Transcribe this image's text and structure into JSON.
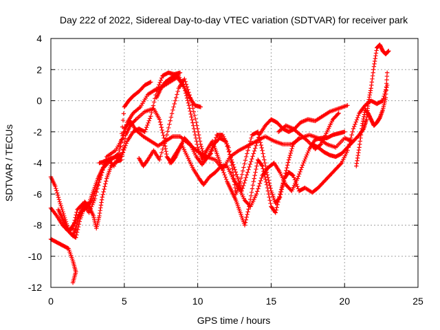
{
  "chart_data": {
    "type": "scatter",
    "title": "Day 222 of 2022, Sidereal Day-to-day VTEC variation (SDTVAR) for receiver park",
    "xlabel": "GPS time / hours",
    "ylabel": "SDTVAR / TECUs",
    "xlim": [
      0,
      25
    ],
    "ylim": [
      -12,
      4
    ],
    "xticks": [
      0,
      5,
      10,
      15,
      20,
      25
    ],
    "yticks": [
      -12,
      -10,
      -8,
      -6,
      -4,
      -2,
      0,
      2,
      4
    ],
    "grid": true,
    "marker": "plus",
    "color": "#ff0000",
    "series": [
      {
        "points": [
          [
            0.0,
            -4.9
          ],
          [
            0.3,
            -5.5
          ],
          [
            0.6,
            -6.5
          ],
          [
            0.9,
            -7.4
          ],
          [
            1.2,
            -8.3
          ],
          [
            1.5,
            -8.2
          ],
          [
            1.8,
            -7.0
          ],
          [
            2.2,
            -6.6
          ],
          [
            2.6,
            -7.2
          ],
          [
            3.0,
            -6.3
          ],
          [
            3.4,
            -4.8
          ],
          [
            3.8,
            -3.6
          ],
          [
            4.4,
            -3.2
          ],
          [
            4.9,
            -2.4
          ],
          [
            5.2,
            -1.4
          ],
          [
            5.6,
            -0.8
          ],
          [
            6.1,
            -0.4
          ],
          [
            6.6,
            0.4
          ],
          [
            7.1,
            0.7
          ],
          [
            7.6,
            0.9
          ],
          [
            8.1,
            1.2
          ],
          [
            8.6,
            1.5
          ],
          [
            9.0,
            1.0
          ],
          [
            9.4,
            0.3
          ],
          [
            9.8,
            -0.3
          ],
          [
            10.2,
            -0.4
          ]
        ]
      },
      {
        "points": [
          [
            0.0,
            -6.9
          ],
          [
            0.4,
            -7.4
          ],
          [
            0.8,
            -8.0
          ],
          [
            1.2,
            -8.4
          ],
          [
            1.6,
            -7.9
          ],
          [
            2.0,
            -7.2
          ],
          [
            2.4,
            -6.9
          ],
          [
            2.8,
            -6.4
          ],
          [
            3.2,
            -5.4
          ],
          [
            3.6,
            -4.3
          ],
          [
            4.1,
            -3.8
          ],
          [
            4.6,
            -3.4
          ],
          [
            5.0,
            -1.8
          ],
          [
            5.4,
            -1.3
          ],
          [
            5.8,
            -1.9
          ],
          [
            6.3,
            -2.3
          ],
          [
            6.8,
            -2.6
          ],
          [
            7.3,
            -2.9
          ],
          [
            7.8,
            -2.6
          ],
          [
            8.3,
            -2.3
          ],
          [
            8.8,
            -2.3
          ],
          [
            9.3,
            -2.7
          ],
          [
            9.8,
            -3.1
          ],
          [
            10.2,
            -3.4
          ],
          [
            10.6,
            -3.6
          ],
          [
            11.2,
            -3.8
          ],
          [
            11.7,
            -4.4
          ],
          [
            12.2,
            -3.6
          ],
          [
            12.8,
            -3.2
          ],
          [
            13.4,
            -2.9
          ],
          [
            14.0,
            -2.6
          ],
          [
            14.6,
            -2.3
          ],
          [
            15.2,
            -2.6
          ],
          [
            15.8,
            -2.8
          ],
          [
            16.4,
            -2.8
          ],
          [
            17.0,
            -2.4
          ],
          [
            17.6,
            -2.2
          ],
          [
            18.2,
            -2.4
          ],
          [
            18.8,
            -2.8
          ],
          [
            19.4,
            -3.0
          ],
          [
            20.0,
            -2.4
          ],
          [
            20.5,
            -2.6
          ]
        ]
      },
      {
        "points": [
          [
            0.0,
            -8.9
          ],
          [
            0.4,
            -9.1
          ],
          [
            0.8,
            -9.3
          ],
          [
            1.2,
            -9.5
          ],
          [
            1.5,
            -10.3
          ],
          [
            1.7,
            -11.0
          ],
          [
            1.5,
            -11.7
          ]
        ]
      },
      {
        "points": [
          [
            1.5,
            -8.7
          ],
          [
            1.7,
            -8.2
          ],
          [
            1.9,
            -7.5
          ],
          [
            2.1,
            -7.0
          ],
          [
            2.3,
            -6.5
          ],
          [
            2.6,
            -6.8
          ],
          [
            2.9,
            -7.4
          ],
          [
            3.1,
            -8.2
          ],
          [
            3.3,
            -7.4
          ],
          [
            3.5,
            -6.2
          ],
          [
            3.8,
            -5.0
          ],
          [
            4.1,
            -4.2
          ],
          [
            4.5,
            -3.9
          ],
          [
            4.8,
            -3.8
          ],
          [
            5.1,
            -2.2
          ],
          [
            5.4,
            -1.6
          ],
          [
            5.8,
            -1.2
          ],
          [
            6.4,
            -0.7
          ],
          [
            7.0,
            -0.5
          ],
          [
            7.4,
            -1.2
          ],
          [
            7.7,
            -2.4
          ],
          [
            7.9,
            -3.6
          ],
          [
            8.2,
            -4.0
          ],
          [
            8.5,
            -3.6
          ],
          [
            8.8,
            -3.0
          ],
          [
            9.1,
            -2.4
          ],
          [
            9.5,
            -2.8
          ],
          [
            9.9,
            -3.6
          ],
          [
            10.3,
            -4.1
          ],
          [
            10.7,
            -3.6
          ],
          [
            11.1,
            -2.8
          ],
          [
            11.5,
            -2.4
          ],
          [
            11.9,
            -2.6
          ],
          [
            12.3,
            -3.8
          ],
          [
            12.7,
            -4.9
          ],
          [
            13.0,
            -5.8
          ],
          [
            13.4,
            -4.6
          ],
          [
            13.8,
            -3.4
          ],
          [
            14.2,
            -2.2
          ],
          [
            14.6,
            -1.6
          ],
          [
            15.0,
            -1.2
          ],
          [
            15.4,
            -1.4
          ],
          [
            15.8,
            -1.8
          ],
          [
            16.2,
            -2.0
          ],
          [
            16.6,
            -1.8
          ],
          [
            17.0,
            -1.4
          ],
          [
            17.5,
            -1.2
          ],
          [
            18.0,
            -1.3
          ],
          [
            18.5,
            -1.0
          ],
          [
            19.0,
            -0.7
          ],
          [
            19.6,
            -0.5
          ],
          [
            20.2,
            -0.3
          ]
        ]
      },
      {
        "points": [
          [
            6.0,
            -3.7
          ],
          [
            6.3,
            -4.2
          ],
          [
            6.6,
            -3.8
          ],
          [
            7.0,
            -3.2
          ],
          [
            7.4,
            -3.8
          ],
          [
            7.9,
            -2.2
          ],
          [
            8.3,
            -0.6
          ],
          [
            8.7,
            0.8
          ],
          [
            9.1,
            1.4
          ],
          [
            9.5,
            0.2
          ],
          [
            9.9,
            -1.4
          ],
          [
            10.2,
            -2.8
          ],
          [
            10.5,
            -3.8
          ],
          [
            10.9,
            -3.4
          ],
          [
            11.3,
            -2.2
          ],
          [
            11.7,
            -2.2
          ],
          [
            12.1,
            -3.0
          ],
          [
            12.4,
            -4.6
          ],
          [
            12.6,
            -6.0
          ],
          [
            12.9,
            -5.2
          ],
          [
            13.3,
            -3.6
          ],
          [
            13.7,
            -2.2
          ],
          [
            14.1,
            -2.0
          ],
          [
            14.4,
            -3.2
          ],
          [
            14.7,
            -4.6
          ],
          [
            15.0,
            -5.8
          ],
          [
            15.3,
            -6.6
          ],
          [
            15.6,
            -6.2
          ],
          [
            15.9,
            -5.0
          ],
          [
            16.2,
            -3.8
          ],
          [
            16.5,
            -2.8
          ],
          [
            16.9,
            -2.4
          ]
        ]
      },
      {
        "points": [
          [
            8.1,
            -4.0
          ],
          [
            8.5,
            -3.4
          ],
          [
            8.9,
            -2.8
          ],
          [
            9.3,
            -3.6
          ],
          [
            9.7,
            -4.4
          ],
          [
            10.1,
            -5.0
          ],
          [
            10.4,
            -5.4
          ],
          [
            10.8,
            -4.9
          ],
          [
            11.2,
            -4.6
          ],
          [
            11.6,
            -4.2
          ],
          [
            12.0,
            -4.2
          ],
          [
            12.4,
            -5.0
          ],
          [
            12.8,
            -5.6
          ],
          [
            13.2,
            -6.4
          ],
          [
            13.6,
            -6.8
          ],
          [
            14.0,
            -6.0
          ],
          [
            14.4,
            -4.8
          ],
          [
            14.8,
            -4.3
          ],
          [
            15.2,
            -4.0
          ],
          [
            15.6,
            -4.6
          ],
          [
            16.0,
            -5.4
          ],
          [
            16.4,
            -5.8
          ],
          [
            16.8,
            -5.0
          ],
          [
            17.2,
            -4.0
          ],
          [
            17.6,
            -3.1
          ],
          [
            18.0,
            -2.5
          ],
          [
            18.4,
            -2.4
          ],
          [
            18.8,
            -2.4
          ],
          [
            19.2,
            -2.2
          ],
          [
            19.6,
            -2.1
          ],
          [
            20.0,
            -2.0
          ]
        ]
      },
      {
        "points": [
          [
            7.2,
            0.2
          ],
          [
            7.5,
            0.8
          ],
          [
            7.8,
            1.2
          ],
          [
            8.1,
            1.4
          ],
          [
            8.4,
            1.6
          ],
          [
            8.7,
            1.6
          ],
          [
            9.1,
            0.8
          ],
          [
            9.4,
            -0.3
          ],
          [
            9.7,
            -1.6
          ],
          [
            10.0,
            -3.0
          ],
          [
            10.3,
            -3.8
          ],
          [
            10.6,
            -3.2
          ],
          [
            11.0,
            -2.6
          ],
          [
            11.3,
            -3.4
          ],
          [
            11.6,
            -4.2
          ],
          [
            12.0,
            -5.2
          ],
          [
            12.3,
            -5.8
          ],
          [
            12.6,
            -6.4
          ],
          [
            12.9,
            -7.2
          ],
          [
            13.2,
            -8.0
          ],
          [
            13.5,
            -6.8
          ],
          [
            13.8,
            -5.2
          ],
          [
            14.1,
            -3.8
          ],
          [
            14.4,
            -4.2
          ],
          [
            14.7,
            -5.4
          ],
          [
            15.0,
            -6.8
          ],
          [
            15.3,
            -7.2
          ],
          [
            15.6,
            -6.0
          ],
          [
            15.9,
            -5.0
          ],
          [
            16.2,
            -4.6
          ],
          [
            16.5,
            -4.8
          ],
          [
            16.9,
            -5.8
          ],
          [
            17.3,
            -5.6
          ],
          [
            17.8,
            -5.9
          ],
          [
            18.2,
            -5.6
          ],
          [
            18.6,
            -5.2
          ],
          [
            19.0,
            -4.8
          ],
          [
            19.4,
            -4.4
          ],
          [
            19.8,
            -4.0
          ],
          [
            20.2,
            -3.2
          ],
          [
            20.6,
            -1.8
          ],
          [
            21.0,
            -0.8
          ],
          [
            21.4,
            -0.3
          ],
          [
            21.8,
            0.0
          ],
          [
            22.2,
            -0.2
          ],
          [
            22.6,
            0.0
          ],
          [
            22.9,
            1.0
          ]
        ]
      },
      {
        "points": [
          [
            17.8,
            -2.8
          ],
          [
            18.2,
            -3.0
          ],
          [
            18.6,
            -3.3
          ],
          [
            19.0,
            -3.5
          ],
          [
            19.4,
            -3.6
          ],
          [
            19.8,
            -3.4
          ],
          [
            20.2,
            -3.0
          ],
          [
            20.6,
            -2.6
          ],
          [
            21.0,
            -2.2
          ],
          [
            21.3,
            -1.8
          ],
          [
            21.5,
            -1.2
          ],
          [
            21.6,
            -0.2
          ],
          [
            21.8,
            0.8
          ],
          [
            22.0,
            2.2
          ],
          [
            22.2,
            3.4
          ],
          [
            22.4,
            3.6
          ],
          [
            22.6,
            3.2
          ],
          [
            22.8,
            3.0
          ],
          [
            23.0,
            3.2
          ]
        ]
      },
      {
        "points": [
          [
            20.8,
            -4.2
          ],
          [
            21.0,
            -3.0
          ],
          [
            21.2,
            -1.6
          ],
          [
            21.4,
            -0.6
          ],
          [
            21.6,
            -0.8
          ],
          [
            21.8,
            -1.2
          ],
          [
            22.0,
            -1.6
          ],
          [
            22.2,
            -1.4
          ],
          [
            22.4,
            -1.1
          ],
          [
            22.6,
            -0.6
          ],
          [
            22.8,
            0.2
          ],
          [
            22.9,
            1.8
          ]
        ]
      },
      {
        "points": [
          [
            15.5,
            -2.0
          ],
          [
            16.0,
            -1.6
          ],
          [
            16.5,
            -1.8
          ],
          [
            17.0,
            -2.2
          ],
          [
            17.5,
            -2.6
          ],
          [
            18.0,
            -3.1
          ],
          [
            18.4,
            -2.8
          ],
          [
            18.8,
            -2.0
          ],
          [
            19.2,
            -1.2
          ],
          [
            19.6,
            -0.8
          ]
        ]
      },
      {
        "points": [
          [
            3.3,
            -4.0
          ],
          [
            3.7,
            -3.9
          ],
          [
            4.1,
            -3.7
          ],
          [
            4.5,
            -3.6
          ],
          [
            4.8,
            -3.6
          ],
          [
            5.2,
            -2.6
          ],
          [
            5.6,
            -2.0
          ],
          [
            6.0,
            -1.8
          ],
          [
            6.4,
            -2.0
          ],
          [
            6.8,
            -1.0
          ],
          [
            7.2,
            0.6
          ],
          [
            7.6,
            1.6
          ],
          [
            8.0,
            1.8
          ],
          [
            8.4,
            1.7
          ],
          [
            8.8,
            1.8
          ]
        ]
      },
      {
        "points": [
          [
            0.5,
            -7.0
          ],
          [
            0.8,
            -7.6
          ],
          [
            1.1,
            -8.2
          ],
          [
            1.4,
            -8.6
          ],
          [
            1.7,
            -8.8
          ],
          [
            2.0,
            -7.6
          ],
          [
            2.3,
            -6.8
          ],
          [
            2.6,
            -6.6
          ],
          [
            2.9,
            -5.8
          ],
          [
            3.2,
            -5.0
          ],
          [
            3.5,
            -4.4
          ],
          [
            3.9,
            -3.8
          ],
          [
            4.3,
            -4.2
          ],
          [
            4.7,
            -3.4
          ],
          [
            5.0,
            -0.4
          ],
          [
            5.3,
            0.0
          ],
          [
            5.6,
            0.3
          ],
          [
            6.0,
            0.6
          ],
          [
            6.4,
            1.0
          ],
          [
            6.8,
            1.2
          ]
        ]
      }
    ]
  }
}
